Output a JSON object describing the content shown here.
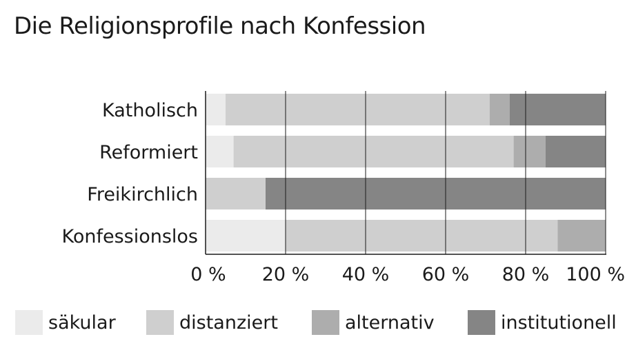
{
  "chart_data": {
    "type": "bar",
    "orientation": "horizontal",
    "stacked": true,
    "title": "Die Religionsprofile nach Konfession",
    "categories": [
      "Katholisch",
      "Reformiert",
      "Freikirchlich",
      "Konfessionslos"
    ],
    "series": [
      {
        "name": "säkular",
        "color": "#ebebeb",
        "values": [
          5,
          7,
          0,
          20
        ]
      },
      {
        "name": "distanziert",
        "color": "#cfcfcf",
        "values": [
          66,
          70,
          15,
          68
        ]
      },
      {
        "name": "alternativ",
        "color": "#adadad",
        "values": [
          5,
          8,
          0,
          12
        ]
      },
      {
        "name": "institutionell",
        "color": "#858585",
        "values": [
          24,
          15,
          85,
          0
        ]
      }
    ],
    "xlim": [
      0,
      100
    ],
    "xticks": [
      "0 %",
      "20 %",
      "40 %",
      "60 %",
      "80 %",
      "100 %"
    ],
    "xtick_values": [
      0,
      20,
      40,
      60,
      80,
      100
    ],
    "grid": true,
    "legend_position": "bottom"
  }
}
